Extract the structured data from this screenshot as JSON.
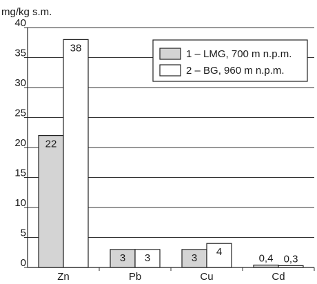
{
  "chart_data": {
    "type": "bar",
    "ylabel": "mg/kg s.m.",
    "ylim": [
      0,
      40
    ],
    "yticks": [
      0,
      5,
      10,
      15,
      20,
      25,
      30,
      35,
      40
    ],
    "grid": true,
    "legend_position": "top-right",
    "categories": [
      "Zn",
      "Pb",
      "Cu",
      "Cd"
    ],
    "series": [
      {
        "name": "1 – LMG, 700 m n.p.m.",
        "color": "#d4d4d4",
        "values": [
          22,
          3,
          3,
          0.4
        ],
        "labels": [
          "22",
          "3",
          "3",
          "0,4"
        ]
      },
      {
        "name": "2 – BG, 960 m n.p.m.",
        "color": "#ffffff",
        "values": [
          38,
          3,
          4,
          0.3
        ],
        "labels": [
          "38",
          "3",
          "4",
          "0,3"
        ]
      }
    ]
  }
}
